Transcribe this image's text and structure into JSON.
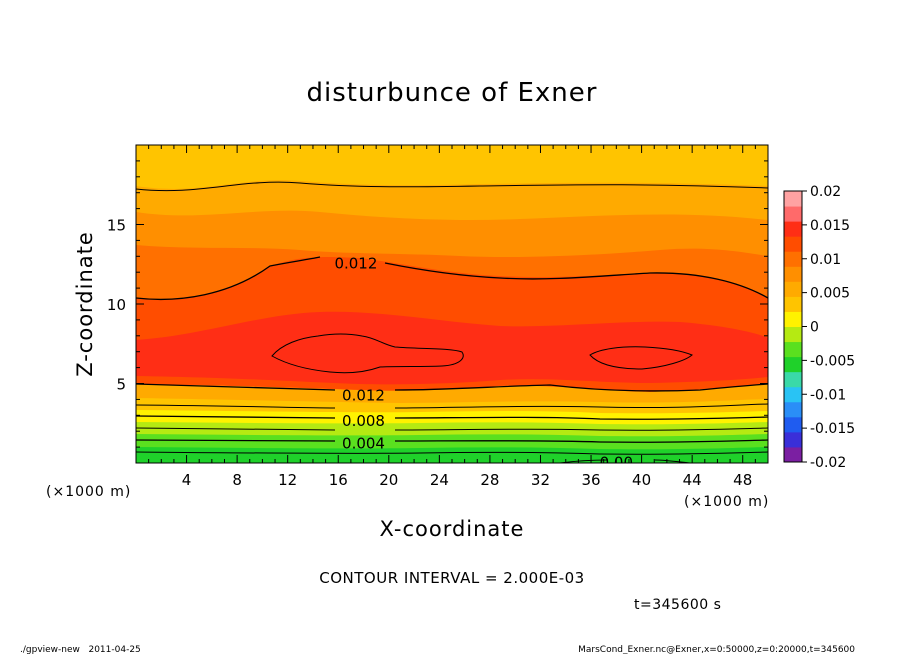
{
  "chart_data": {
    "type": "contour",
    "title": "disturbunce of Exner",
    "xlabel": "X-coordinate",
    "ylabel": "Z-coordinate",
    "x_unit": "(×1000 m)",
    "y_unit": "(×1000 m)",
    "xlim": [
      0,
      50
    ],
    "ylim": [
      0,
      20
    ],
    "x_ticks": [
      4,
      8,
      12,
      16,
      20,
      24,
      28,
      32,
      36,
      40,
      44,
      48
    ],
    "y_ticks": [
      5,
      10,
      15
    ],
    "colorbar": {
      "levels": [
        -0.02,
        -0.015,
        -0.01,
        -0.005,
        0,
        0.005,
        0.01,
        0.015,
        0.02
      ],
      "labels": [
        "-0.02",
        "-0.015",
        "-0.01",
        "-0.005",
        "0",
        "0.005",
        "0.01",
        "0.015",
        "0.02"
      ],
      "colors": [
        "#7b1fa2",
        "#3a2fd9",
        "#1f5cf0",
        "#2a8ef7",
        "#29c3f4",
        "#3ad9a8",
        "#1fd12a",
        "#5ae01f",
        "#b5ea12",
        "#fff200",
        "#ffc400",
        "#ffaa00",
        "#ff8f00",
        "#ff7000",
        "#ff4d00",
        "#ff2e15",
        "#ff6a6a",
        "#ffa2a2"
      ]
    },
    "contour_labels": [
      {
        "text": "0.012",
        "x": 17.4,
        "z": 12.6
      },
      {
        "text": "0.012",
        "x": 18.0,
        "z": 4.3
      },
      {
        "text": "0.008",
        "x": 18.0,
        "z": 2.7
      },
      {
        "text": "0.004",
        "x": 18.0,
        "z": 1.3
      },
      {
        "text": "0.00",
        "x": 38.0,
        "z": 0.1
      }
    ],
    "contour_interval": "CONTOUR INTERVAL = 2.000E-03",
    "time": "t=345600 s"
  },
  "footer": {
    "left": "./gpview-new   2011-04-25",
    "right": "MarsCond_Exner.nc@Exner,x=0:50000,z=0:20000,t=345600"
  }
}
